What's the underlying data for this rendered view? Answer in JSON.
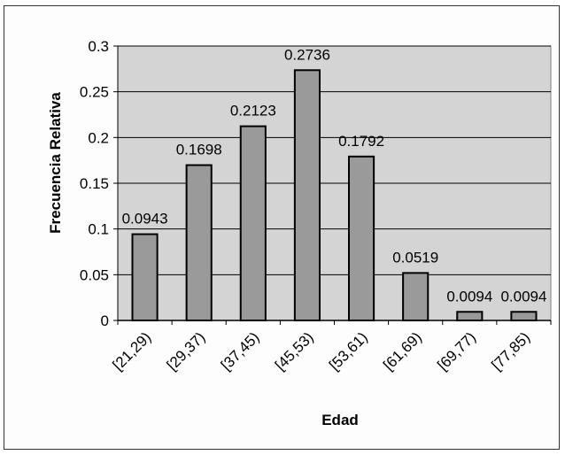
{
  "chart_data": {
    "type": "bar",
    "categories": [
      "[21,29)",
      "[29,37)",
      "[37,45)",
      "[45,53)",
      "[53,61)",
      "[61,69)",
      "[69,77)",
      "[77,85)"
    ],
    "values": [
      0.0943,
      0.1698,
      0.2123,
      0.2736,
      0.1792,
      0.0519,
      0.0094,
      0.0094
    ],
    "data_labels": [
      "0.0943",
      "0.1698",
      "0.2123",
      "0.2736",
      "0.1792",
      "0.0519",
      "0.0094",
      "0.0094"
    ],
    "xlabel": "Edad",
    "ylabel": "Frecuencia Relativa",
    "ylim": [
      0,
      0.3
    ],
    "yticks": [
      "0",
      "0.05",
      "0.1",
      "0.15",
      "0.2",
      "0.25",
      "0.3"
    ],
    "grid": true,
    "legend": "none",
    "colors": {
      "plot_background": "#d4d4d4",
      "bar_fill": "#9a9a9a",
      "bar_stroke": "#000000",
      "gridline": "#000000"
    }
  }
}
